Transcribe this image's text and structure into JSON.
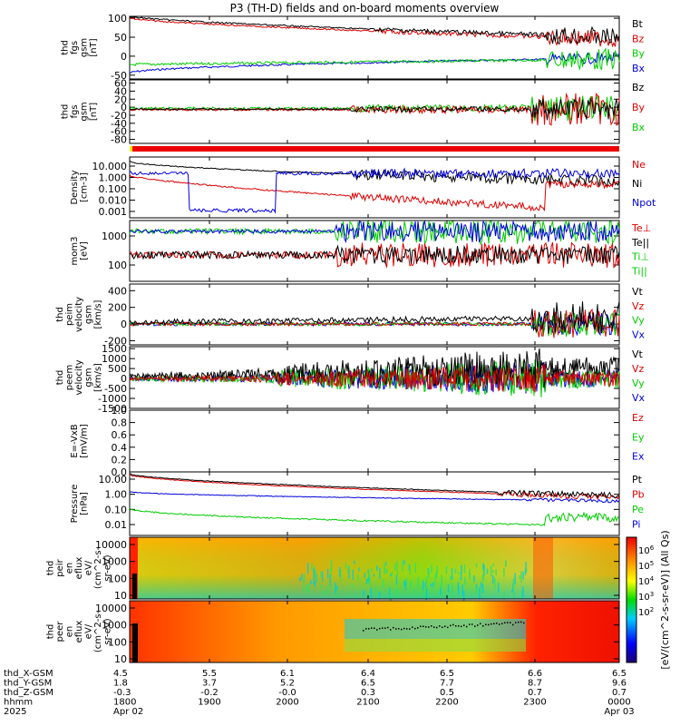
{
  "title": "P3 (TH-D) fields and on-board moments overview",
  "panels": [
    {
      "id": "fgs-b",
      "ylabel": [
        "thd",
        "fgs",
        "gsm",
        "[nT]"
      ],
      "yticks": [
        -50,
        0,
        50,
        100
      ],
      "ylim": [
        -60,
        105
      ],
      "legend": [
        {
          "label": "Bt",
          "color": "#000000"
        },
        {
          "label": "Bz",
          "color": "#dd0000"
        },
        {
          "label": "By",
          "color": "#00cc00"
        },
        {
          "label": "Bx",
          "color": "#0000dd"
        }
      ]
    },
    {
      "id": "fgs-dsl",
      "ylabel": [
        "thd",
        "fgs",
        "gsm",
        "[nT]"
      ],
      "yticks": [
        -80,
        -60,
        -40,
        -20,
        0,
        20,
        40,
        60
      ],
      "ylim": [
        -90,
        68
      ],
      "legend": [
        {
          "label": "Bz",
          "color": "#000000"
        },
        {
          "label": "By",
          "color": "#dd0000"
        },
        {
          "label": "Bx",
          "color": "#00cc00"
        }
      ]
    },
    {
      "id": "density",
      "ylabel": [
        "Density",
        "[cm-3]"
      ],
      "yticks": [
        "10.000",
        "1.000",
        "0.100",
        "0.010",
        "0.001"
      ],
      "scale": "log",
      "legend": [
        {
          "label": "Ne",
          "color": "#dd0000"
        },
        {
          "label": "Ni",
          "color": "#000000"
        },
        {
          "label": "Npot",
          "color": "#0000dd"
        }
      ]
    },
    {
      "id": "temperature",
      "ylabel": [
        "mom3",
        "[eV]"
      ],
      "yticks": [
        100,
        1000
      ],
      "scale": "log",
      "legend": [
        {
          "label": "Te⊥",
          "color": "#dd0000"
        },
        {
          "label": "Te||",
          "color": "#000000"
        },
        {
          "label": "Ti⊥",
          "color": "#00cc00"
        },
        {
          "label": "Ti||",
          "color": "#00cc00"
        }
      ]
    },
    {
      "id": "peim-velocity",
      "ylabel": [
        "thd",
        "peim",
        "velocity",
        "gsm",
        "[km/s]"
      ],
      "yticks": [
        -200,
        0,
        200,
        400
      ],
      "ylim": [
        -250,
        480
      ],
      "legend": [
        {
          "label": "Vt",
          "color": "#000000"
        },
        {
          "label": "Vz",
          "color": "#dd0000"
        },
        {
          "label": "Vy",
          "color": "#00cc00"
        },
        {
          "label": "Vx",
          "color": "#0000dd"
        }
      ]
    },
    {
      "id": "peem-velocity",
      "ylabel": [
        "thd",
        "peem",
        "velocity",
        "gsm",
        "[km/s]"
      ],
      "yticks": [
        -1500,
        -1000,
        -500,
        0,
        500,
        1000,
        1500
      ],
      "ylim": [
        -1500,
        1600
      ],
      "legend": [
        {
          "label": "Vt",
          "color": "#000000"
        },
        {
          "label": "Vz",
          "color": "#dd0000"
        },
        {
          "label": "Vy",
          "color": "#00cc00"
        },
        {
          "label": "Vx",
          "color": "#0000dd"
        }
      ]
    },
    {
      "id": "efield",
      "ylabel": [
        "E=-VxB",
        "[mV/m]"
      ],
      "yticks": [
        "0.0",
        "0.2",
        "0.4",
        "0.6",
        "0.8",
        "1.0"
      ],
      "ylim": [
        0,
        1.0
      ],
      "legend": [
        {
          "label": "Ez",
          "color": "#dd0000"
        },
        {
          "label": "Ey",
          "color": "#00cc00"
        },
        {
          "label": "Ex",
          "color": "#0000dd"
        }
      ]
    },
    {
      "id": "pressure",
      "ylabel": [
        "Pressure",
        "[nPa]"
      ],
      "yticks": [
        "10.00",
        "1.00",
        "0.10",
        "0.01"
      ],
      "scale": "log",
      "legend": [
        {
          "label": "Pt",
          "color": "#000000"
        },
        {
          "label": "Pb",
          "color": "#dd0000"
        },
        {
          "label": "Pe",
          "color": "#00cc00"
        },
        {
          "label": "Pi",
          "color": "#0000dd"
        }
      ]
    },
    {
      "id": "peir-eflux",
      "ylabel": [
        "thd",
        "peir",
        "en",
        "eflux",
        "eV/",
        "(cm^2-s-",
        "sr-eV)"
      ],
      "yticks": [
        10,
        100,
        1000,
        10000
      ],
      "scale": "log"
    },
    {
      "id": "peer-eflux",
      "ylabel": [
        "thd",
        "peer",
        "en",
        "eflux",
        "eV/",
        "(cm^2-s-",
        "sr-eV)"
      ],
      "yticks": [
        10,
        100,
        1000,
        10000
      ],
      "scale": "log"
    }
  ],
  "colorbar": {
    "label": "[eV/(cm^2-s-sr-eV)] (All Qs)",
    "ticks": [
      "10^6",
      "10^5",
      "10^4",
      "10^3",
      "10^2"
    ]
  },
  "xaxis": {
    "rows": [
      {
        "label": "thd_X-GSM",
        "values": [
          "4.5",
          "5.5",
          "6.1",
          "6.4",
          "6.5",
          "6.6",
          "6.5"
        ]
      },
      {
        "label": "thd_Y-GSM",
        "values": [
          "1.8",
          "3.7",
          "5.2",
          "6.5",
          "7.7",
          "8.7",
          "9.6"
        ]
      },
      {
        "label": "thd_Z-GSM",
        "values": [
          "-0.3",
          "-0.2",
          "-0.0",
          "0.3",
          "0.5",
          "0.7",
          "0.7"
        ]
      },
      {
        "label": "hhmm",
        "values": [
          "1800",
          "1900",
          "2000",
          "2100",
          "2200",
          "2300",
          "0000"
        ]
      },
      {
        "label": "2025",
        "values": [
          "Apr 02",
          "",
          "",
          "",
          "",
          "",
          "Apr 03"
        ]
      }
    ]
  },
  "chart_data": {
    "type": "line",
    "title": "P3 (TH-D) fields and on-board moments overview",
    "x": [
      "1800",
      "1900",
      "2000",
      "2100",
      "2200",
      "2300",
      "0000"
    ],
    "series": [
      {
        "name": "Bt",
        "values": [
          105,
          80,
          65,
          55,
          48,
          45,
          40
        ]
      },
      {
        "name": "Bz",
        "values": [
          100,
          78,
          64,
          54,
          47,
          42,
          38
        ]
      },
      {
        "name": "By",
        "values": [
          -25,
          -15,
          -12,
          -12,
          -10,
          -8,
          0
        ]
      },
      {
        "name": "Bx",
        "values": [
          -45,
          -15,
          -5,
          -2,
          0,
          2,
          5
        ]
      },
      {
        "name": "Ni",
        "values": [
          20,
          3,
          1,
          0.7,
          0.6,
          0.4,
          0.3
        ]
      },
      {
        "name": "Ne",
        "values": [
          0.6,
          0.08,
          0.02,
          0.008,
          0.004,
          0.3,
          0.3
        ]
      },
      {
        "name": "Pt",
        "values": [
          8,
          2.5,
          1.2,
          0.6,
          0.4,
          0.3,
          0.25
        ]
      },
      {
        "name": "Pb",
        "values": [
          7,
          2.3,
          1.1,
          0.5,
          0.35,
          0.28,
          0.22
        ]
      },
      {
        "name": "Pe",
        "values": [
          0.1,
          0.05,
          0.025,
          0.007,
          0.004,
          0.02,
          0.05
        ]
      },
      {
        "name": "Pi",
        "values": [
          1.3,
          0.5,
          0.3,
          0.2,
          0.18,
          0.16,
          0.15
        ]
      }
    ]
  }
}
